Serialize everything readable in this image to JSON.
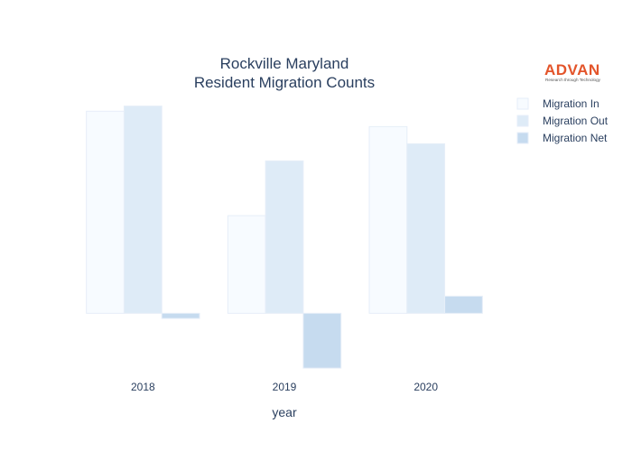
{
  "logo": {
    "name": "ADVAN",
    "tagline": "Research through Technology"
  },
  "chart_data": {
    "type": "bar",
    "title_lines": [
      "Rockville Maryland",
      "Resident Migration Counts"
    ],
    "xlabel": "year",
    "ylabel": "",
    "categories": [
      "2018",
      "2019",
      "2020"
    ],
    "series": [
      {
        "name": "Migration In",
        "values": [
          11800,
          5700,
          10900
        ],
        "color": "#f7fbff"
      },
      {
        "name": "Migration Out",
        "values": [
          12100,
          8900,
          9900
        ],
        "color": "#deebf7"
      },
      {
        "name": "Migration Net",
        "values": [
          -300,
          -3200,
          1000
        ],
        "color": "#c6dbef"
      }
    ],
    "ylim": [
      -3300,
      12500
    ],
    "legend_position": "top-right",
    "grid": false,
    "yaxis_ticks_visible": false
  }
}
